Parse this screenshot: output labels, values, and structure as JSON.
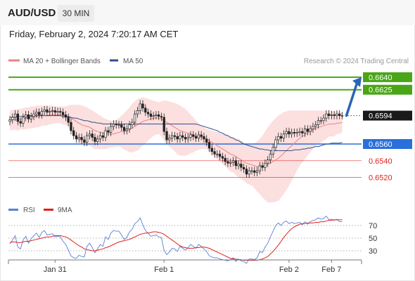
{
  "header": {
    "symbol": "AUD/USD",
    "timeframe": "30 MIN",
    "datetime": "Friday, February 2, 2024 7:20:17 AM CET"
  },
  "legend": {
    "items": [
      {
        "label": "MA 20 + Bollinger Bands",
        "color": "#f08080"
      },
      {
        "label": "MA 50",
        "color": "#2f4f8f"
      }
    ],
    "credit": "Research © 2024 Trading Central"
  },
  "rsi_legend": {
    "items": [
      {
        "label": "RSI",
        "color": "#5b7fd1"
      },
      {
        "label": "9MA",
        "color": "#e0201b"
      }
    ]
  },
  "chart_data": [
    {
      "type": "candlestick",
      "xlabels": [
        {
          "label": "Jan 31",
          "bar": 17
        },
        {
          "label": "Feb 1",
          "bar": 58
        },
        {
          "label": "Feb 2",
          "bar": 105
        },
        {
          "label": "Feb 7",
          "bar": 121
        }
      ],
      "ylim": [
        0.6507,
        0.665
      ],
      "levels": [
        {
          "value": 0.664,
          "label": "0.6640",
          "color": "#4aa517",
          "kind": "resistance"
        },
        {
          "value": 0.6625,
          "label": "0.6625",
          "color": "#4aa517",
          "kind": "resistance"
        },
        {
          "value": 0.6594,
          "label": "0.6594",
          "color": "#222222",
          "kind": "last-price"
        },
        {
          "value": 0.656,
          "label": "0.6560",
          "color": "#2a6fdb",
          "kind": "pivot"
        },
        {
          "value": 0.654,
          "label": "0.6540",
          "color": "#e0201b",
          "kind": "support"
        },
        {
          "value": 0.652,
          "label": "0.6520",
          "color": "#e0201b",
          "kind": "support"
        }
      ],
      "close": [
        0.6589,
        0.6592,
        0.6596,
        0.6587,
        0.6585,
        0.6592,
        0.6595,
        0.659,
        0.6593,
        0.6596,
        0.6598,
        0.6595,
        0.6599,
        0.6601,
        0.6598,
        0.6599,
        0.66,
        0.6598,
        0.6599,
        0.6598,
        0.6595,
        0.6592,
        0.6586,
        0.6576,
        0.657,
        0.6566,
        0.6568,
        0.6565,
        0.6562,
        0.657,
        0.6572,
        0.6568,
        0.6563,
        0.6566,
        0.657,
        0.6568,
        0.6576,
        0.6574,
        0.6581,
        0.6584,
        0.6583,
        0.6583,
        0.658,
        0.6576,
        0.6578,
        0.6583,
        0.6586,
        0.6596,
        0.66,
        0.6608,
        0.6603,
        0.6598,
        0.6596,
        0.6593,
        0.6594,
        0.6595,
        0.6593,
        0.6592,
        0.6575,
        0.6565,
        0.6567,
        0.657,
        0.6569,
        0.6566,
        0.657,
        0.6568,
        0.6566,
        0.6568,
        0.6571,
        0.6569,
        0.6567,
        0.6571,
        0.6569,
        0.6566,
        0.6562,
        0.6555,
        0.6551,
        0.6548,
        0.6548,
        0.6545,
        0.6543,
        0.6539,
        0.6537,
        0.6538,
        0.654,
        0.6534,
        0.6536,
        0.6532,
        0.653,
        0.6524,
        0.6528,
        0.6528,
        0.6526,
        0.6528,
        0.6534,
        0.6532,
        0.6537,
        0.6541,
        0.6548,
        0.6556,
        0.6565,
        0.6569,
        0.6567,
        0.6572,
        0.6575,
        0.6572,
        0.6574,
        0.6573,
        0.6574,
        0.6575,
        0.6573,
        0.6578,
        0.6575,
        0.6578,
        0.6581,
        0.6583,
        0.6588,
        0.6588,
        0.6591,
        0.6596,
        0.6594,
        0.6595,
        0.6594,
        0.6596,
        0.6594,
        0.6594
      ],
      "series": [
        {
          "name": "MA 20 + Bollinger Bands",
          "color": "#f08080",
          "ma": [
            0.6588,
            0.6589,
            0.6589,
            0.6589,
            0.659,
            0.659,
            0.6591,
            0.6591,
            0.6592,
            0.6592,
            0.6593,
            0.6593,
            0.6594,
            0.6594,
            0.6594,
            0.6595,
            0.6595,
            0.6595,
            0.6595,
            0.6595,
            0.6594,
            0.6594,
            0.6593,
            0.6591,
            0.6589,
            0.6587,
            0.6585,
            0.6583,
            0.6582,
            0.6581,
            0.658,
            0.6578,
            0.6576,
            0.6575,
            0.6574,
            0.6573,
            0.6572,
            0.6572,
            0.6572,
            0.6572,
            0.6573,
            0.6574,
            0.6575,
            0.6575,
            0.6576,
            0.6577,
            0.6579,
            0.6581,
            0.6583,
            0.6585,
            0.6587,
            0.6588,
            0.6589,
            0.659,
            0.6591,
            0.6591,
            0.6591,
            0.659,
            0.6588,
            0.6586,
            0.6584,
            0.6582,
            0.658,
            0.6578,
            0.6576,
            0.6575,
            0.6574,
            0.6573,
            0.6572,
            0.6571,
            0.657,
            0.6569,
            0.6568,
            0.6567,
            0.6566,
            0.6564,
            0.6562,
            0.656,
            0.6558,
            0.6556,
            0.6554,
            0.6552,
            0.655,
            0.6548,
            0.6547,
            0.6545,
            0.6543,
            0.6541,
            0.6539,
            0.6537,
            0.6536,
            0.6535,
            0.6534,
            0.6533,
            0.6533,
            0.6533,
            0.6534,
            0.6535,
            0.6537,
            0.6539,
            0.6541,
            0.6543,
            0.6546,
            0.6549,
            0.6552,
            0.6555,
            0.6558,
            0.6561,
            0.6564,
            0.6567,
            0.6569,
            0.6571,
            0.6573,
            0.6575,
            0.6577,
            0.6579,
            0.658,
            0.6581,
            0.6582,
            0.6583,
            0.6584,
            0.6584,
            0.6584,
            0.6585,
            0.6585,
            0.6586
          ],
          "upper": [
            0.66,
            0.6601,
            0.6601,
            0.6602,
            0.6602,
            0.6603,
            0.6604,
            0.6604,
            0.6605,
            0.6605,
            0.6606,
            0.6606,
            0.6606,
            0.6606,
            0.6606,
            0.6606,
            0.6606,
            0.6605,
            0.6605,
            0.6605,
            0.6605,
            0.6605,
            0.6606,
            0.6607,
            0.6607,
            0.6607,
            0.6607,
            0.6606,
            0.6605,
            0.6604,
            0.6602,
            0.66,
            0.6598,
            0.6596,
            0.6594,
            0.6592,
            0.659,
            0.6589,
            0.6588,
            0.6588,
            0.6589,
            0.6591,
            0.6594,
            0.6597,
            0.66,
            0.6604,
            0.6608,
            0.6611,
            0.6614,
            0.6615,
            0.6616,
            0.6615,
            0.6614,
            0.6613,
            0.6612,
            0.6611,
            0.661,
            0.6611,
            0.6612,
            0.6612,
            0.6611,
            0.661,
            0.6609,
            0.6608,
            0.6606,
            0.6604,
            0.6602,
            0.6599,
            0.6595,
            0.6592,
            0.6588,
            0.6585,
            0.6582,
            0.658,
            0.6578,
            0.6577,
            0.6576,
            0.6575,
            0.6574,
            0.6573,
            0.6572,
            0.6571,
            0.657,
            0.6569,
            0.6568,
            0.6567,
            0.6566,
            0.6564,
            0.6562,
            0.6561,
            0.656,
            0.656,
            0.6561,
            0.6563,
            0.6566,
            0.657,
            0.6575,
            0.658,
            0.6584,
            0.6588,
            0.6591,
            0.6594,
            0.6596,
            0.6598,
            0.6599,
            0.66,
            0.66,
            0.66,
            0.66,
            0.66,
            0.66,
            0.66,
            0.66,
            0.66,
            0.66,
            0.66,
            0.66,
            0.66,
            0.66,
            0.66,
            0.66,
            0.66,
            0.6599,
            0.6599,
            0.6598,
            0.6598
          ],
          "lower": [
            0.6576,
            0.6577,
            0.6577,
            0.6576,
            0.6578,
            0.6577,
            0.6578,
            0.6578,
            0.6579,
            0.6579,
            0.658,
            0.658,
            0.6582,
            0.6582,
            0.6582,
            0.6584,
            0.6584,
            0.6585,
            0.6585,
            0.6585,
            0.6583,
            0.6583,
            0.658,
            0.6575,
            0.6571,
            0.6567,
            0.6563,
            0.656,
            0.6559,
            0.6558,
            0.6558,
            0.6556,
            0.6554,
            0.6554,
            0.6554,
            0.6554,
            0.6554,
            0.6555,
            0.6556,
            0.6556,
            0.6557,
            0.6557,
            0.6556,
            0.6553,
            0.6552,
            0.655,
            0.655,
            0.6551,
            0.6552,
            0.6555,
            0.6558,
            0.6561,
            0.6564,
            0.6567,
            0.657,
            0.6571,
            0.6572,
            0.6569,
            0.6564,
            0.656,
            0.6557,
            0.6554,
            0.6551,
            0.6548,
            0.6546,
            0.6546,
            0.6546,
            0.6547,
            0.6549,
            0.655,
            0.6552,
            0.6553,
            0.6554,
            0.6554,
            0.6554,
            0.6551,
            0.6548,
            0.6545,
            0.6542,
            0.6539,
            0.6536,
            0.6533,
            0.653,
            0.6527,
            0.6526,
            0.6523,
            0.652,
            0.6518,
            0.6516,
            0.6513,
            0.6512,
            0.651,
            0.6507,
            0.6503,
            0.65,
            0.6496,
            0.6493,
            0.649,
            0.649,
            0.649,
            0.6491,
            0.6492,
            0.6496,
            0.65,
            0.6505,
            0.651,
            0.6516,
            0.6522,
            0.6528,
            0.6534,
            0.6538,
            0.6542,
            0.6546,
            0.655,
            0.6554,
            0.6558,
            0.656,
            0.6562,
            0.6564,
            0.6566,
            0.6569,
            0.6569,
            0.6569,
            0.6572,
            0.6572,
            0.6574
          ]
        },
        {
          "name": "MA 50",
          "color": "#2f4f8f",
          "values": [
            0.6592,
            0.6592,
            0.6592,
            0.6593,
            0.6593,
            0.6593,
            0.6594,
            0.6594,
            0.6594,
            0.6594,
            0.6594,
            0.6594,
            0.6594,
            0.6594,
            0.6594,
            0.6594,
            0.6594,
            0.6594,
            0.6594,
            0.6594,
            0.6593,
            0.6593,
            0.6593,
            0.6592,
            0.6591,
            0.6591,
            0.659,
            0.6589,
            0.6588,
            0.6588,
            0.6587,
            0.6586,
            0.6586,
            0.6585,
            0.6585,
            0.6584,
            0.6584,
            0.6584,
            0.6584,
            0.6584,
            0.6584,
            0.6584,
            0.6584,
            0.6584,
            0.6584,
            0.6584,
            0.6584,
            0.6584,
            0.6584,
            0.6584,
            0.6584,
            0.6584,
            0.6584,
            0.6584,
            0.6584,
            0.6584,
            0.6584,
            0.6584,
            0.6584,
            0.6584,
            0.6584,
            0.6584,
            0.6584,
            0.6584,
            0.6584,
            0.6584,
            0.6584,
            0.6584,
            0.6584,
            0.6584,
            0.6584,
            0.6583,
            0.6582,
            0.6581,
            0.658,
            0.6579,
            0.6578,
            0.6577,
            0.6576,
            0.6574,
            0.6573,
            0.6571,
            0.657,
            0.6568,
            0.6567,
            0.6565,
            0.6564,
            0.6562,
            0.656,
            0.6559,
            0.6558,
            0.6557,
            0.6556,
            0.6555,
            0.6554,
            0.6554,
            0.6553,
            0.6553,
            0.6552,
            0.6552,
            0.6552,
            0.6552,
            0.6552,
            0.6552,
            0.6552,
            0.6552,
            0.6552,
            0.6553,
            0.6553,
            0.6553,
            0.6554,
            0.6554,
            0.6555,
            0.6555,
            0.6556,
            0.6557,
            0.6557,
            0.6558,
            0.6559,
            0.656,
            0.656,
            0.6561,
            0.6561,
            0.6561,
            0.6561,
            0.6562
          ]
        }
      ],
      "forecast_arrow": {
        "from": 0.6594,
        "to": 0.664
      }
    },
    {
      "type": "line",
      "ylim": [
        20,
        80
      ],
      "yticks": [
        70,
        50,
        30
      ],
      "reference_levels": [
        70,
        50,
        30
      ],
      "series": [
        {
          "name": "RSI",
          "color": "#5b7fd1",
          "values": [
            41,
            47,
            54,
            36,
            33,
            47,
            53,
            42,
            49,
            54,
            58,
            51,
            59,
            62,
            55,
            56,
            57,
            52,
            53,
            52,
            45,
            40,
            31,
            22,
            19,
            18,
            23,
            21,
            20,
            37,
            42,
            35,
            27,
            33,
            40,
            37,
            52,
            48,
            58,
            62,
            61,
            61,
            55,
            48,
            51,
            60,
            64,
            73,
            76,
            82,
            71,
            62,
            58,
            53,
            54,
            55,
            52,
            51,
            31,
            24,
            28,
            34,
            33,
            29,
            37,
            34,
            31,
            35,
            40,
            37,
            34,
            40,
            37,
            33,
            29,
            22,
            20,
            19,
            19,
            17,
            16,
            15,
            14,
            16,
            19,
            13,
            17,
            14,
            13,
            10,
            17,
            17,
            16,
            19,
            29,
            27,
            36,
            42,
            52,
            61,
            70,
            74,
            70,
            75,
            77,
            73,
            75,
            73,
            74,
            75,
            71,
            76,
            72,
            76,
            78,
            79,
            82,
            80,
            81,
            85,
            79,
            80,
            78,
            80,
            76,
            76
          ]
        },
        {
          "name": "9MA",
          "color": "#e0201b",
          "values": [
            43,
            44,
            44,
            43,
            43,
            44,
            45,
            45,
            46,
            47,
            48,
            49,
            50,
            51,
            52,
            52,
            53,
            54,
            54,
            54,
            53,
            52,
            50,
            47,
            44,
            41,
            38,
            36,
            33,
            32,
            31,
            30,
            30,
            31,
            32,
            33,
            35,
            36,
            38,
            40,
            42,
            44,
            45,
            46,
            47,
            48,
            50,
            52,
            54,
            56,
            57,
            58,
            58,
            59,
            60,
            60,
            59,
            58,
            56,
            53,
            50,
            47,
            44,
            41,
            38,
            36,
            35,
            34,
            34,
            34,
            35,
            35,
            36,
            36,
            35,
            34,
            32,
            30,
            28,
            26,
            24,
            22,
            20,
            18,
            17,
            17,
            16,
            16,
            15,
            15,
            15,
            15,
            15,
            15,
            16,
            17,
            19,
            21,
            25,
            29,
            34,
            39,
            45,
            51,
            56,
            61,
            65,
            68,
            70,
            72,
            73,
            73,
            74,
            74,
            74,
            75,
            75,
            76,
            76,
            77,
            78,
            78,
            79,
            79,
            79,
            79
          ]
        }
      ]
    }
  ]
}
